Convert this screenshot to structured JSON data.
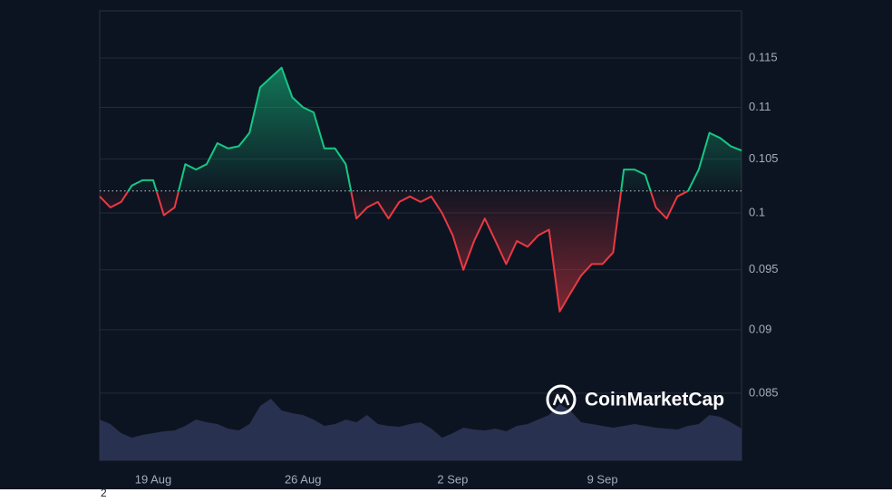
{
  "chart_data": {
    "type": "line",
    "log_y": true,
    "ylim": [
      0.08,
      0.12
    ],
    "yticks": [
      0.085,
      0.09,
      0.095,
      0.1,
      0.105,
      0.11,
      0.115
    ],
    "grid": true,
    "baseline": 0.102,
    "up_color": "#16c784",
    "down_color": "#ea3943",
    "categories": [
      null,
      null,
      null,
      null,
      null,
      "19 Aug",
      null,
      null,
      null,
      null,
      null,
      null,
      null,
      null,
      null,
      null,
      null,
      null,
      null,
      "26 Aug",
      null,
      null,
      null,
      null,
      null,
      null,
      null,
      null,
      null,
      null,
      null,
      null,
      null,
      "2 Sep",
      null,
      null,
      null,
      null,
      null,
      null,
      null,
      null,
      null,
      null,
      null,
      null,
      null,
      "9 Sep",
      null,
      null,
      null,
      null,
      null,
      null,
      null,
      null,
      null,
      null,
      null,
      null,
      null
    ],
    "values": [
      0.1015,
      0.1005,
      0.101,
      0.1025,
      0.103,
      0.103,
      0.0998,
      0.1005,
      0.1045,
      0.104,
      0.1045,
      0.1065,
      0.106,
      0.1062,
      0.1075,
      0.112,
      0.113,
      0.114,
      0.111,
      0.11,
      0.1095,
      0.106,
      0.106,
      0.1045,
      0.0995,
      0.1005,
      0.101,
      0.0995,
      0.101,
      0.1015,
      0.101,
      0.1015,
      0.1,
      0.098,
      0.095,
      0.0975,
      0.0995,
      0.0975,
      0.0955,
      0.0975,
      0.097,
      0.098,
      0.0985,
      0.0915,
      0.093,
      0.0945,
      0.0955,
      0.0955,
      0.0965,
      0.104,
      0.104,
      0.1035,
      0.1005,
      0.0995,
      0.1015,
      0.102,
      0.104,
      0.1075,
      0.107,
      0.1062,
      0.1058
    ],
    "volume": [
      45,
      40,
      30,
      25,
      28,
      30,
      32,
      33,
      38,
      45,
      42,
      40,
      35,
      33,
      40,
      60,
      68,
      55,
      52,
      50,
      45,
      38,
      40,
      45,
      42,
      50,
      40,
      38,
      37,
      40,
      42,
      35,
      25,
      30,
      36,
      34,
      33,
      35,
      32,
      38,
      40,
      45,
      50,
      62,
      55,
      42,
      40,
      38,
      36,
      38,
      40,
      38,
      36,
      35,
      34,
      38,
      40,
      50,
      48,
      42,
      35
    ],
    "volume_color": "#2b3454",
    "watermark": "CoinMarketCap",
    "footnote": "2"
  }
}
